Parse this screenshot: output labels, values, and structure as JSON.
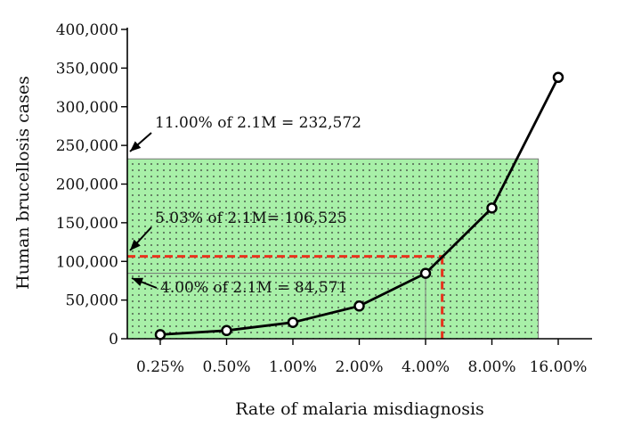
{
  "chart_data": {
    "type": "line",
    "title": "",
    "xlabel": "Rate of malaria misdiagnosis",
    "ylabel": "Human brucellosis cases",
    "ylim": [
      0,
      400000
    ],
    "categories": [
      "0.25%",
      "0.50%",
      "1.00%",
      "2.00%",
      "4.00%",
      "8.00%",
      "16.00%"
    ],
    "y_ticks": [
      "0",
      "50,000",
      "100,000",
      "150,000",
      "200,000",
      "250,000",
      "300,000",
      "350,000",
      "400,000"
    ],
    "series": [
      {
        "values": [
          5300,
          10600,
          21100,
          42300,
          84571,
          169000,
          338000
        ]
      }
    ],
    "shaded_regions": [
      {
        "x_end_category_index": 5.7,
        "y_top": 232572,
        "color": "#a8f0a8"
      },
      {
        "x_end_category_index": 4.0,
        "y_top": 84571,
        "color": "#a8f0a8"
      }
    ],
    "reference_line": {
      "x_category_index": 4.25,
      "y": 106525,
      "color": "#e8331c"
    },
    "grid": false,
    "legend": "none",
    "annotations": [
      {
        "text": "11.00% of 2.1M = 232,572",
        "y": 232572
      },
      {
        "text": "5.03% of 2.1M= 106,525",
        "y": 106525
      },
      {
        "text": "4.00% of 2.1M = 84,571",
        "y": 84571
      }
    ]
  }
}
